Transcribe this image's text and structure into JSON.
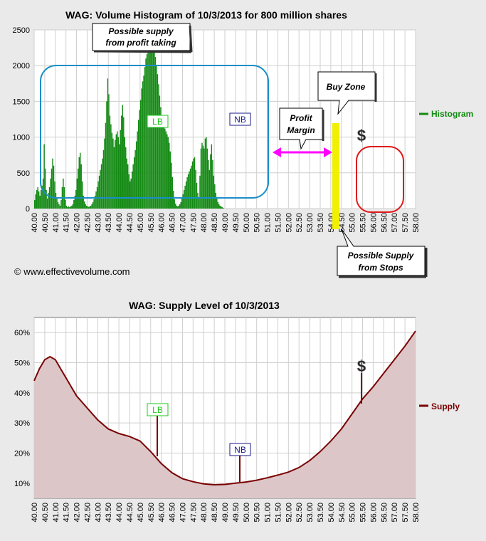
{
  "copyright": "© www.effectivevolume.com",
  "colors": {
    "histogram": "#138a13",
    "supply_line": "#7a0000",
    "supply_fill": "#dcc6c8",
    "buy_zone": "#f0f000",
    "callout_blue": "#1a8fc8",
    "callout_red": "#e01818",
    "arrow_magenta": "#ff00ff",
    "lb_green": "#1ec81e",
    "nb_navy": "#1a1a8a"
  },
  "x_labels": [
    "40.00",
    "40.50",
    "41.00",
    "41.50",
    "42.00",
    "42.50",
    "43.00",
    "43.50",
    "44.00",
    "44.50",
    "45.00",
    "45.50",
    "46.00",
    "46.50",
    "47.00",
    "47.50",
    "48.00",
    "48.50",
    "49.00",
    "49.50",
    "50.00",
    "50.50",
    "51.00",
    "51.50",
    "52.00",
    "52.50",
    "53.00",
    "53.50",
    "54.00",
    "54.50",
    "55.00",
    "55.50",
    "56.00",
    "56.50",
    "57.00",
    "57.50",
    "58.00"
  ],
  "chart_data": [
    {
      "type": "bar",
      "title": "WAG: Volume Histogram of 10/3/2013 for 800 million shares",
      "x_range": [
        40.0,
        58.0
      ],
      "ylim": [
        0,
        2500
      ],
      "yticks": [
        "0",
        "500",
        "1000",
        "1500",
        "2000",
        "2500"
      ],
      "grid": true,
      "legend": "right",
      "series": [
        {
          "name": "Histogram",
          "x_step": 0.05,
          "x_start": 40.0,
          "values": [
            120,
            200,
            260,
            300,
            240,
            180,
            260,
            320,
            420,
            900,
            560,
            260,
            140,
            220,
            300,
            420,
            560,
            700,
            600,
            380,
            220,
            150,
            90,
            60,
            40,
            120,
            300,
            420,
            300,
            120,
            40,
            20,
            30,
            20,
            30,
            40,
            60,
            120,
            180,
            260,
            420,
            560,
            720,
            780,
            620,
            380,
            180,
            100,
            60,
            40,
            30,
            25,
            30,
            40,
            60,
            90,
            130,
            180,
            240,
            300,
            380,
            460,
            540,
            620,
            700,
            820,
            980,
            1200,
            1500,
            1820,
            1600,
            1300,
            1180,
            1060,
            980,
            860,
            960,
            1040,
            1080,
            1000,
            900,
            1100,
            1300,
            1450,
            1280,
            1000,
            860,
            700,
            620,
            480,
            380,
            420,
            520,
            620,
            720,
            820,
            940,
            1080,
            1240,
            1380,
            1520,
            1680,
            1780,
            1860,
            1980,
            2100,
            2160,
            2180,
            2200,
            2260,
            2300,
            2360,
            2380,
            2240,
            2120,
            2000,
            1880,
            1740,
            1580,
            1420,
            1300,
            1220,
            1180,
            1120,
            1080,
            1040,
            1000,
            920,
            800,
            640,
            440,
            250,
            130,
            70,
            40,
            30,
            40,
            60,
            90,
            140,
            200,
            260,
            320,
            380,
            440,
            480,
            520,
            560,
            600,
            660,
            700,
            720,
            540,
            360,
            220,
            140,
            460,
            840,
            920,
            880,
            840,
            980,
            1000,
            840,
            680,
            540,
            760,
            900,
            680,
            460,
            340,
            220,
            140,
            90,
            60,
            40,
            30,
            20,
            10
          ]
        }
      ],
      "annotations": {
        "supply_profit": "Possible supply\nfrom profit taking",
        "lb": "LB",
        "nb": "NB",
        "profit_margin": "Profit\nMargin",
        "buy_zone": "Buy Zone",
        "dollar": "$",
        "supply_stops": "Possible Supply\nfrom Stops"
      }
    },
    {
      "type": "area",
      "title": "WAG: Supply Level of 10/3/2013",
      "x_range": [
        40.0,
        58.0
      ],
      "ylim": [
        0.05,
        0.65
      ],
      "yticks": [
        "10%",
        "20%",
        "30%",
        "40%",
        "50%",
        "60%"
      ],
      "grid": true,
      "legend": "right",
      "series": [
        {
          "name": "Supply",
          "x": [
            40.0,
            40.25,
            40.5,
            40.75,
            41.0,
            41.25,
            41.5,
            41.75,
            42.0,
            42.5,
            43.0,
            43.5,
            44.0,
            44.5,
            45.0,
            45.5,
            46.0,
            46.5,
            47.0,
            47.5,
            48.0,
            48.5,
            49.0,
            49.5,
            50.0,
            50.5,
            51.0,
            51.5,
            52.0,
            52.5,
            53.0,
            53.5,
            54.0,
            54.5,
            55.0,
            55.5,
            56.0,
            56.5,
            57.0,
            57.5,
            58.0
          ],
          "y": [
            0.44,
            0.48,
            0.51,
            0.52,
            0.51,
            0.48,
            0.45,
            0.42,
            0.39,
            0.35,
            0.31,
            0.28,
            0.265,
            0.255,
            0.24,
            0.205,
            0.165,
            0.135,
            0.115,
            0.105,
            0.098,
            0.095,
            0.096,
            0.1,
            0.104,
            0.11,
            0.118,
            0.127,
            0.137,
            0.152,
            0.175,
            0.205,
            0.24,
            0.28,
            0.33,
            0.38,
            0.42,
            0.465,
            0.51,
            0.555,
            0.605
          ]
        }
      ],
      "annotations": {
        "lb": "LB",
        "nb": "NB",
        "dollar": "$"
      }
    }
  ]
}
